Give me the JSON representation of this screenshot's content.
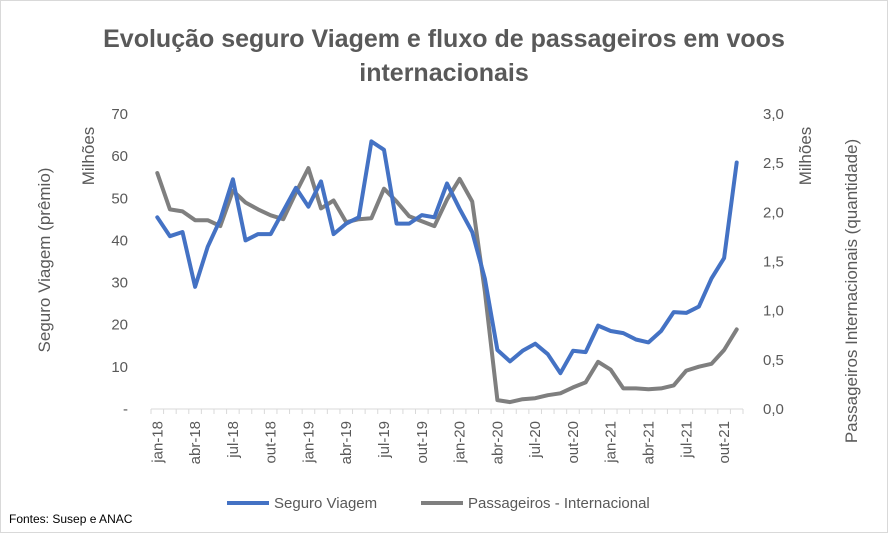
{
  "chart_data": {
    "type": "line",
    "title_lines": [
      "Evolução seguro Viagem e fluxo de passageiros em voos",
      "internacionais"
    ],
    "x": [
      "jan-18",
      "fev-18",
      "mar-18",
      "abr-18",
      "mai-18",
      "jun-18",
      "jul-18",
      "ago-18",
      "set-18",
      "out-18",
      "nov-18",
      "dez-18",
      "jan-19",
      "fev-19",
      "mar-19",
      "abr-19",
      "mai-19",
      "jun-19",
      "jul-19",
      "ago-19",
      "set-19",
      "out-19",
      "nov-19",
      "dez-19",
      "jan-20",
      "fev-20",
      "mar-20",
      "abr-20",
      "mai-20",
      "jun-20",
      "jul-20",
      "ago-20",
      "set-20",
      "out-20",
      "nov-20",
      "dez-20",
      "jan-21",
      "fev-21",
      "mar-21",
      "abr-21",
      "mai-21",
      "jun-21",
      "jul-21",
      "ago-21",
      "set-21",
      "out-21",
      "nov-21"
    ],
    "x_tick_labels": [
      "jan-18",
      "abr-18",
      "jul-18",
      "out-18",
      "jan-19",
      "abr-19",
      "jul-19",
      "out-19",
      "jan-20",
      "abr-20",
      "jul-20",
      "out-20",
      "jan-21",
      "abr-21",
      "jul-21",
      "out-21"
    ],
    "left_axis": {
      "label": "Seguro Viagem (prêmio)",
      "units_label": "Milhões",
      "ylim": [
        0,
        70
      ],
      "tick_labels": [
        "-",
        "10",
        "20",
        "30",
        "40",
        "50",
        "60",
        "70"
      ]
    },
    "right_axis": {
      "label": "Passageiros Internacionais (quantidade)",
      "units_label": "Milhões",
      "ylim": [
        0,
        3.0
      ],
      "tick_labels": [
        "0,0",
        "0,5",
        "1,0",
        "1,5",
        "2,0",
        "2,5",
        "3,0"
      ]
    },
    "series": [
      {
        "name": "Seguro Viagem",
        "axis": "left",
        "color": "#4472c4",
        "values": [
          45.5,
          41.0,
          42.0,
          29.0,
          38.5,
          45.0,
          54.5,
          40.0,
          41.5,
          41.5,
          47.0,
          52.5,
          48.0,
          54.0,
          41.5,
          44.0,
          45.5,
          63.5,
          61.5,
          44.0,
          44.0,
          46.0,
          45.5,
          53.5,
          47.5,
          42.0,
          31.0,
          14.0,
          11.3,
          13.8,
          15.5,
          13.0,
          8.5,
          13.8,
          13.5,
          19.8,
          18.5,
          18.0,
          16.5,
          15.8,
          18.5,
          23.0,
          22.8,
          24.3,
          31.0,
          35.8,
          58.5
        ]
      },
      {
        "name": "Passageiros - Internacional",
        "axis": "right",
        "color": "#7f7f7f",
        "values": [
          2.4,
          2.03,
          2.01,
          1.92,
          1.92,
          1.86,
          2.22,
          2.1,
          2.03,
          1.97,
          1.93,
          2.2,
          2.45,
          2.04,
          2.12,
          1.9,
          1.93,
          1.94,
          2.24,
          2.11,
          1.96,
          1.91,
          1.86,
          2.13,
          2.34,
          2.11,
          1.2,
          0.09,
          0.07,
          0.1,
          0.11,
          0.14,
          0.16,
          0.22,
          0.27,
          0.48,
          0.4,
          0.21,
          0.21,
          0.2,
          0.21,
          0.24,
          0.39,
          0.43,
          0.46,
          0.6,
          0.81
        ]
      }
    ],
    "legend_position": "bottom",
    "grid": false,
    "source_note": "Fontes: Susep e ANAC"
  }
}
